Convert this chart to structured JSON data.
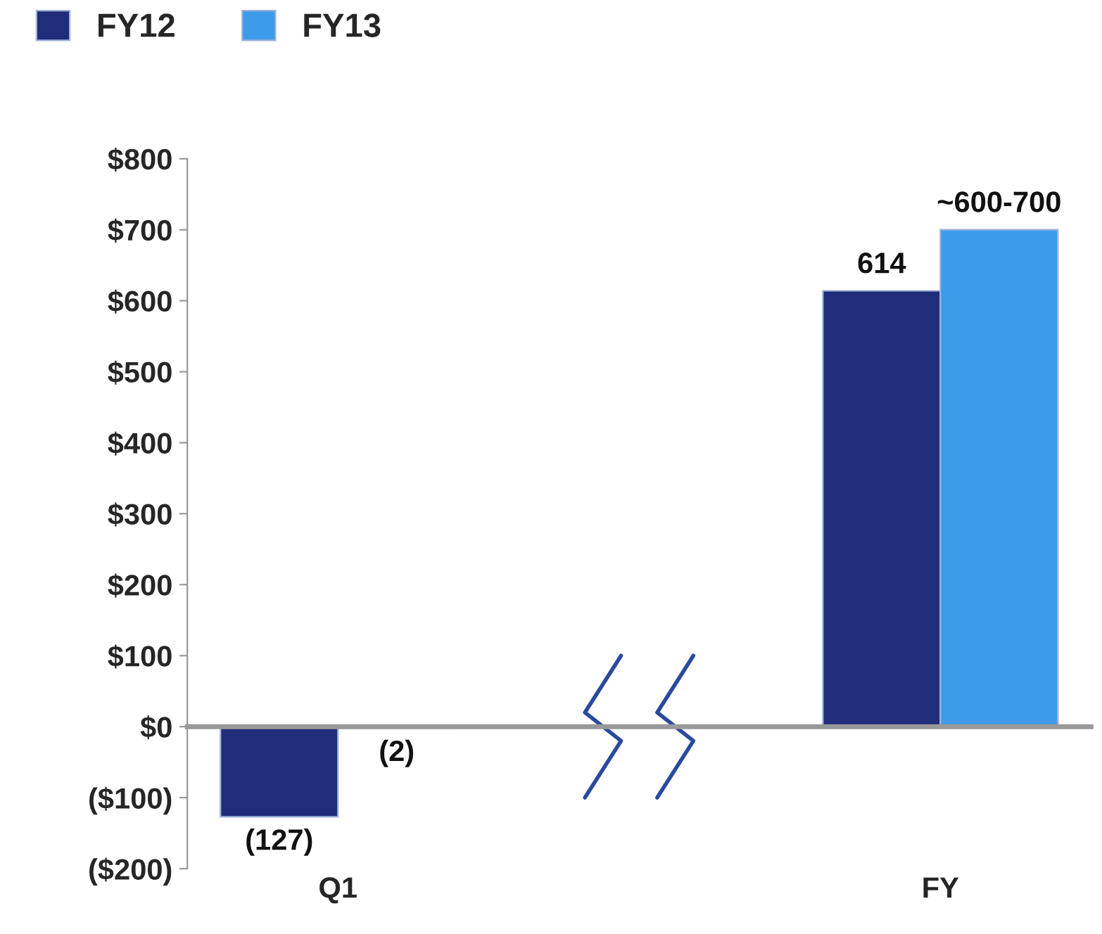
{
  "chart_data": {
    "type": "bar",
    "categories": [
      "Q1",
      null,
      "FY"
    ],
    "series": [
      {
        "name": "FY12",
        "color": "#1f2d7a",
        "values": [
          -127,
          null,
          614
        ],
        "value_labels": [
          "(127)",
          null,
          "614"
        ]
      },
      {
        "name": "FY13",
        "color": "#3d9be9",
        "values": [
          -2,
          null,
          700
        ],
        "value_labels": [
          "(2)",
          null,
          "~600-700"
        ]
      }
    ],
    "ylim": [
      -200,
      800
    ],
    "yticks": [
      {
        "value": 800,
        "label": "$800"
      },
      {
        "value": 700,
        "label": "$700"
      },
      {
        "value": 600,
        "label": "$600"
      },
      {
        "value": 500,
        "label": "$500"
      },
      {
        "value": 400,
        "label": "$400"
      },
      {
        "value": 300,
        "label": "$300"
      },
      {
        "value": 200,
        "label": "$200"
      },
      {
        "value": 100,
        "label": "$100"
      },
      {
        "value": 0,
        "label": "$0"
      },
      {
        "value": -100,
        "label": "($100)"
      },
      {
        "value": -200,
        "label": "($200)"
      }
    ],
    "legend": "top left"
  }
}
